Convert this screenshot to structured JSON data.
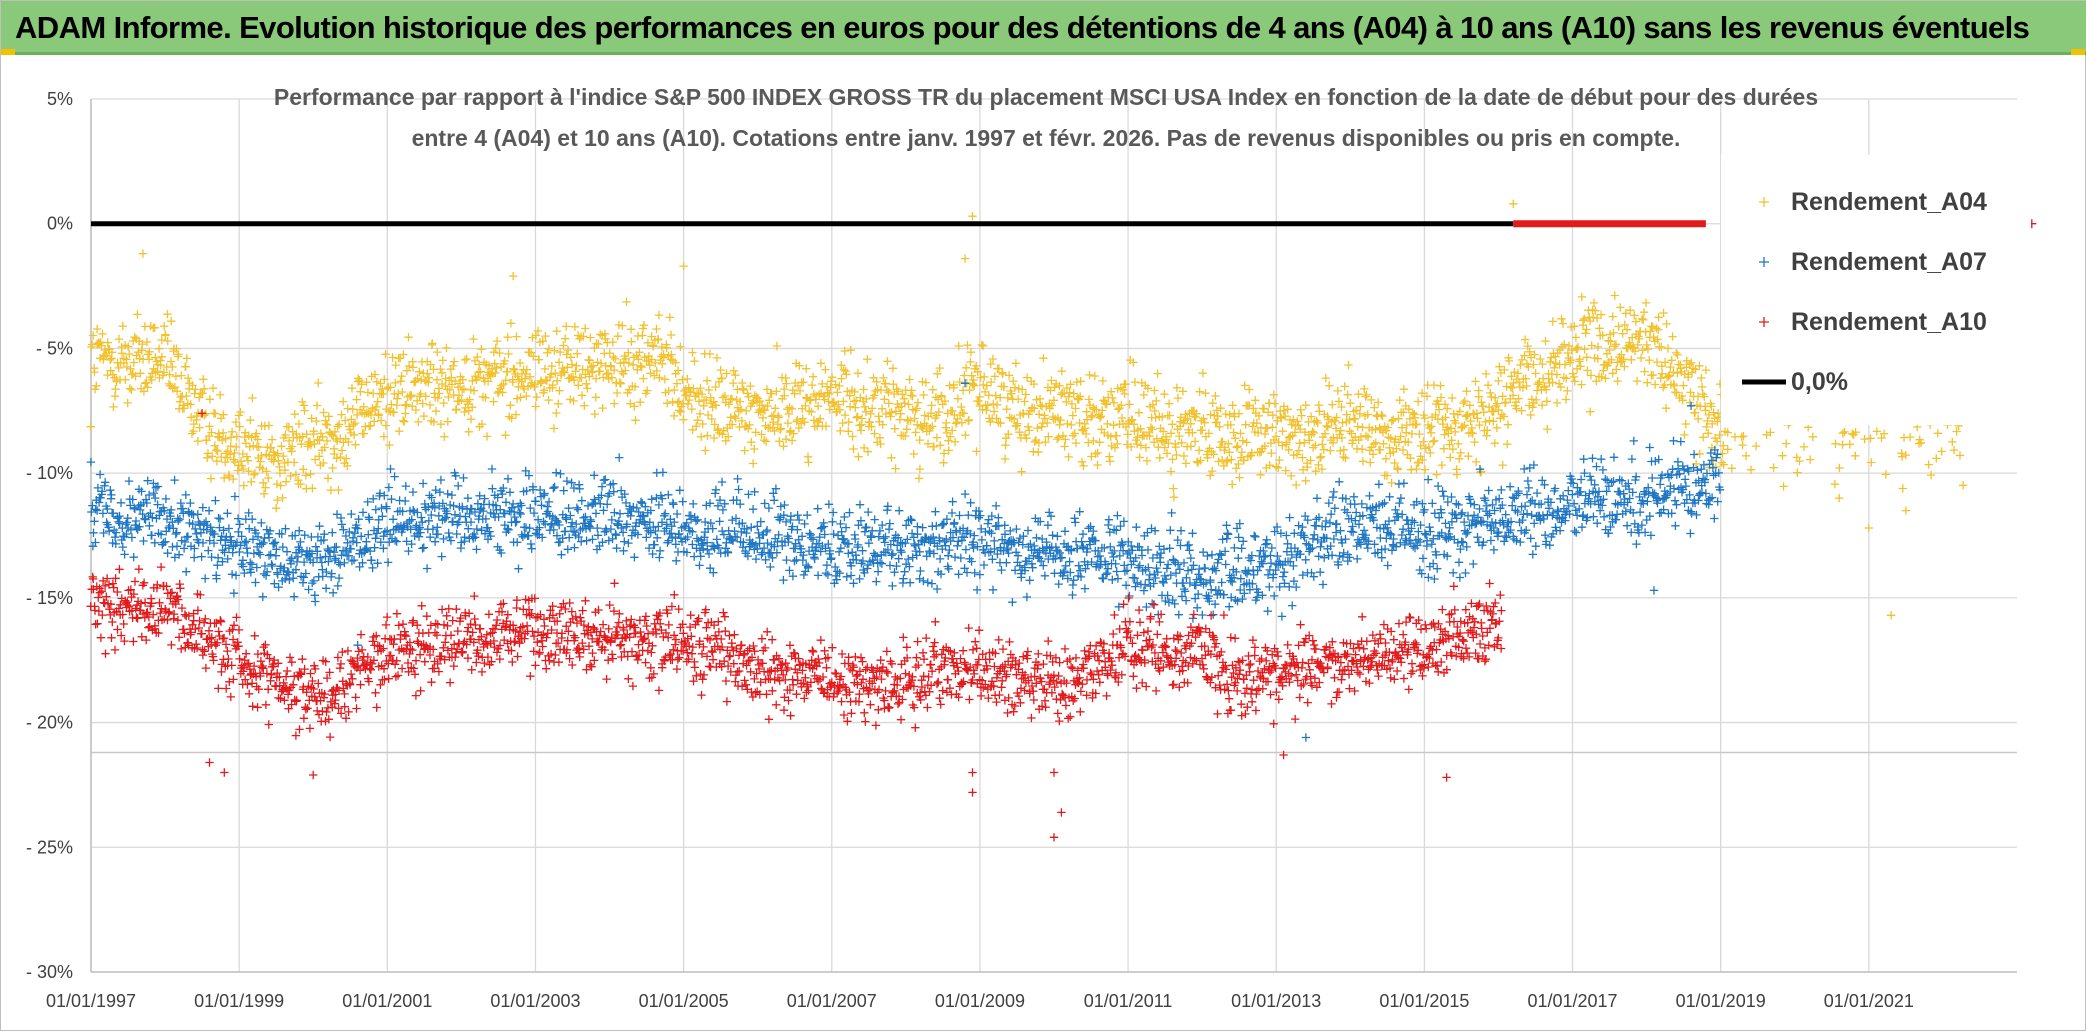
{
  "banner": {
    "title": "ADAM Informe. Evolution historique des performances en euros pour des détentions de 4 ans (A04) à 10 ans (A10) sans les revenus éventuels"
  },
  "chart_data": {
    "type": "scatter",
    "title_lines": [
      "Performance par rapport à l'indice S&P 500 INDEX GROSS TR  du placement MSCI USA Index en fonction de la date de début pour des durées",
      "entre 4 (A04) et 10 ans (A10). Cotations entre janv. 1997 et févr. 2026. Pas de revenus disponibles ou pris en compte."
    ],
    "xlabel": "",
    "ylabel": "",
    "xlim": [
      1997.0,
      2023.0
    ],
    "ylim": [
      -30,
      5
    ],
    "x_ticks": [
      1997,
      1999,
      2001,
      2003,
      2005,
      2007,
      2009,
      2011,
      2013,
      2015,
      2017,
      2019,
      2021
    ],
    "x_tick_labels": [
      "01/01/1997",
      "01/01/1999",
      "01/01/2001",
      "01/01/2003",
      "01/01/2005",
      "01/01/2007",
      "01/01/2009",
      "01/01/2011",
      "01/01/2013",
      "01/01/2015",
      "01/01/2017",
      "01/01/2019",
      "01/01/2021"
    ],
    "y_ticks": [
      5,
      0,
      -5,
      -10,
      -15,
      -20,
      -25,
      -30
    ],
    "y_tick_labels": [
      "5%",
      "0%",
      "- 5%",
      "- 10%",
      "- 15%",
      "- 20%",
      "- 25%",
      "- 30%"
    ],
    "grid": true,
    "legend_position": "top-right",
    "series": [
      {
        "name": "Rendement_A04",
        "color": "#f2c12e",
        "marker": "+",
        "x_range": [
          1997.0,
          2022.3
        ],
        "trend": [
          [
            1997.0,
            -5.6
          ],
          [
            1998.0,
            -5.5
          ],
          [
            1998.6,
            -8.2
          ],
          [
            1999.5,
            -9.5
          ],
          [
            2000.2,
            -8.6
          ],
          [
            2001.0,
            -6.8
          ],
          [
            2002.0,
            -6.4
          ],
          [
            2003.0,
            -5.9
          ],
          [
            2004.0,
            -5.7
          ],
          [
            2004.7,
            -5.4
          ],
          [
            2005.2,
            -7.3
          ],
          [
            2006.0,
            -7.6
          ],
          [
            2007.0,
            -7.0
          ],
          [
            2008.0,
            -7.6
          ],
          [
            2008.6,
            -7.8
          ],
          [
            2009.0,
            -6.4
          ],
          [
            2009.5,
            -7.4
          ],
          [
            2010.5,
            -7.6
          ],
          [
            2011.0,
            -8.0
          ],
          [
            2012.0,
            -8.5
          ],
          [
            2013.0,
            -8.6
          ],
          [
            2014.0,
            -8.1
          ],
          [
            2015.0,
            -8.5
          ],
          [
            2015.8,
            -7.6
          ],
          [
            2016.5,
            -6.2
          ],
          [
            2017.0,
            -5.2
          ],
          [
            2018.0,
            -4.8
          ],
          [
            2018.5,
            -6.4
          ],
          [
            2019.0,
            -8.2
          ],
          [
            2020.0,
            -8.4
          ],
          [
            2021.0,
            -8.7
          ],
          [
            2022.3,
            -8.3
          ]
        ],
        "spread": 1.3,
        "outliers": [
          [
            1997.7,
            -1.2
          ],
          [
            2002.7,
            -2.1
          ],
          [
            2005.0,
            -1.7
          ],
          [
            2008.9,
            0.3
          ],
          [
            2008.8,
            -1.4
          ],
          [
            2016.2,
            0.8
          ],
          [
            2019.1,
            -4.2
          ],
          [
            2020.6,
            -11.0
          ],
          [
            2021.3,
            -15.7
          ],
          [
            2021.0,
            -12.2
          ],
          [
            2021.5,
            -11.5
          ]
        ]
      },
      {
        "name": "Rendement_A07",
        "color": "#1f77c4",
        "marker": "+",
        "x_range": [
          1997.0,
          2019.0
        ],
        "trend": [
          [
            1997.0,
            -11.5
          ],
          [
            1998.0,
            -11.6
          ],
          [
            1998.5,
            -12.6
          ],
          [
            1999.5,
            -13.6
          ],
          [
            2000.2,
            -13.5
          ],
          [
            2001.0,
            -11.8
          ],
          [
            2002.0,
            -11.6
          ],
          [
            2003.0,
            -11.6
          ],
          [
            2004.0,
            -11.8
          ],
          [
            2005.0,
            -12.2
          ],
          [
            2006.0,
            -12.5
          ],
          [
            2007.0,
            -12.8
          ],
          [
            2008.0,
            -13.2
          ],
          [
            2008.7,
            -12.6
          ],
          [
            2009.2,
            -12.9
          ],
          [
            2010.0,
            -13.2
          ],
          [
            2011.0,
            -13.6
          ],
          [
            2012.0,
            -14.1
          ],
          [
            2013.0,
            -13.6
          ],
          [
            2014.0,
            -12.0
          ],
          [
            2015.0,
            -12.4
          ],
          [
            2016.0,
            -11.8
          ],
          [
            2017.0,
            -11.4
          ],
          [
            2018.0,
            -10.8
          ],
          [
            2019.0,
            -10.2
          ]
        ],
        "spread": 1.15,
        "outliers": [
          [
            2000.6,
            -16.9
          ],
          [
            2008.8,
            -6.4
          ],
          [
            2013.4,
            -20.6
          ],
          [
            2018.1,
            -14.7
          ],
          [
            2018.6,
            -7.3
          ]
        ]
      },
      {
        "name": "Rendement_A10",
        "color": "#e31a1c",
        "marker": "+",
        "x_range": [
          1997.0,
          2016.05
        ],
        "trend": [
          [
            1997.0,
            -15.4
          ],
          [
            1997.6,
            -15.2
          ],
          [
            1998.2,
            -15.6
          ],
          [
            1998.8,
            -17.2
          ],
          [
            1999.5,
            -18.2
          ],
          [
            2000.2,
            -19.0
          ],
          [
            2001.0,
            -17.0
          ],
          [
            2002.0,
            -16.7
          ],
          [
            2003.0,
            -16.3
          ],
          [
            2004.0,
            -16.6
          ],
          [
            2005.0,
            -16.8
          ],
          [
            2006.0,
            -17.7
          ],
          [
            2007.0,
            -18.4
          ],
          [
            2008.0,
            -18.5
          ],
          [
            2008.7,
            -17.8
          ],
          [
            2009.5,
            -18.2
          ],
          [
            2010.2,
            -18.6
          ],
          [
            2011.0,
            -16.9
          ],
          [
            2012.0,
            -17.0
          ],
          [
            2012.5,
            -18.4
          ],
          [
            2013.5,
            -17.8
          ],
          [
            2014.5,
            -17.3
          ],
          [
            2015.5,
            -16.5
          ],
          [
            2016.05,
            -15.8
          ]
        ],
        "spread": 1.05,
        "outliers": [
          [
            1998.6,
            -21.6
          ],
          [
            1998.8,
            -22.0
          ],
          [
            1998.5,
            -7.6
          ],
          [
            2000.0,
            -22.1
          ],
          [
            2008.9,
            -22.0
          ],
          [
            2008.9,
            -22.8
          ],
          [
            2010.0,
            -24.6
          ],
          [
            2010.1,
            -23.6
          ],
          [
            2010.0,
            -22.0
          ],
          [
            2015.3,
            -22.2
          ],
          [
            2013.1,
            -21.3
          ]
        ]
      },
      {
        "name": "0,0%",
        "color": "#000000",
        "marker": "line",
        "x": [
          1997.0,
          2016.2
        ],
        "y": [
          0,
          0
        ]
      }
    ],
    "zero_band": {
      "color": "#e31a1c",
      "x": [
        2016.2,
        2018.8
      ],
      "y": 0,
      "extra_point": [
        2023.2,
        0
      ]
    }
  }
}
